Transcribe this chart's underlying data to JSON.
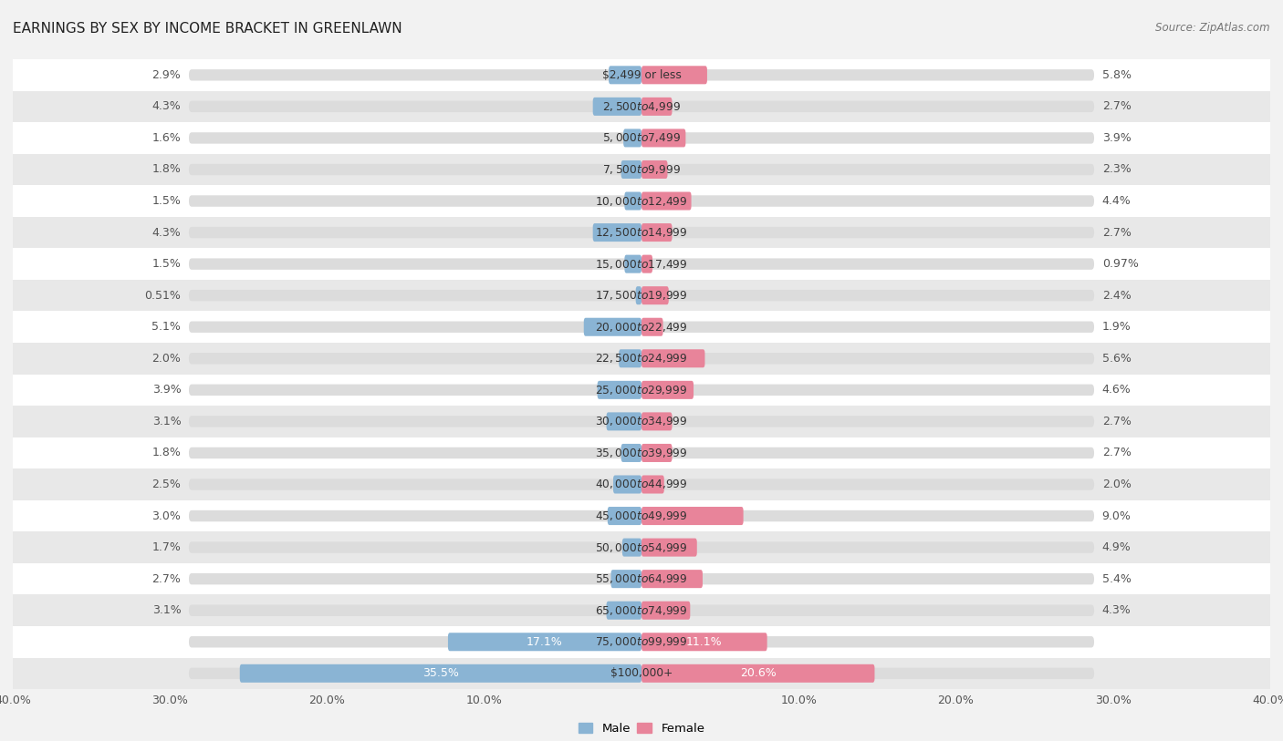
{
  "title": "EARNINGS BY SEX BY INCOME BRACKET IN GREENLAWN",
  "source": "Source: ZipAtlas.com",
  "categories": [
    "$2,499 or less",
    "$2,500 to $4,999",
    "$5,000 to $7,499",
    "$7,500 to $9,999",
    "$10,000 to $12,499",
    "$12,500 to $14,999",
    "$15,000 to $17,499",
    "$17,500 to $19,999",
    "$20,000 to $22,499",
    "$22,500 to $24,999",
    "$25,000 to $29,999",
    "$30,000 to $34,999",
    "$35,000 to $39,999",
    "$40,000 to $44,999",
    "$45,000 to $49,999",
    "$50,000 to $54,999",
    "$55,000 to $64,999",
    "$65,000 to $74,999",
    "$75,000 to $99,999",
    "$100,000+"
  ],
  "male_values": [
    2.9,
    4.3,
    1.6,
    1.8,
    1.5,
    4.3,
    1.5,
    0.51,
    5.1,
    2.0,
    3.9,
    3.1,
    1.8,
    2.5,
    3.0,
    1.7,
    2.7,
    3.1,
    17.1,
    35.5
  ],
  "female_values": [
    5.8,
    2.7,
    3.9,
    2.3,
    4.4,
    2.7,
    0.97,
    2.4,
    1.9,
    5.6,
    4.6,
    2.7,
    2.7,
    2.0,
    9.0,
    4.9,
    5.4,
    4.3,
    11.1,
    20.6
  ],
  "male_color": "#8ab4d4",
  "female_color": "#e8849a",
  "axis_max": 40.0,
  "bar_height": 0.58,
  "bg_color": "#f2f2f2",
  "row_color_odd": "#ffffff",
  "row_color_even": "#e8e8e8",
  "row_pill_color": "#e0e0e0",
  "title_fontsize": 11,
  "label_fontsize": 9,
  "category_fontsize": 8.8,
  "axis_label_fontsize": 9
}
